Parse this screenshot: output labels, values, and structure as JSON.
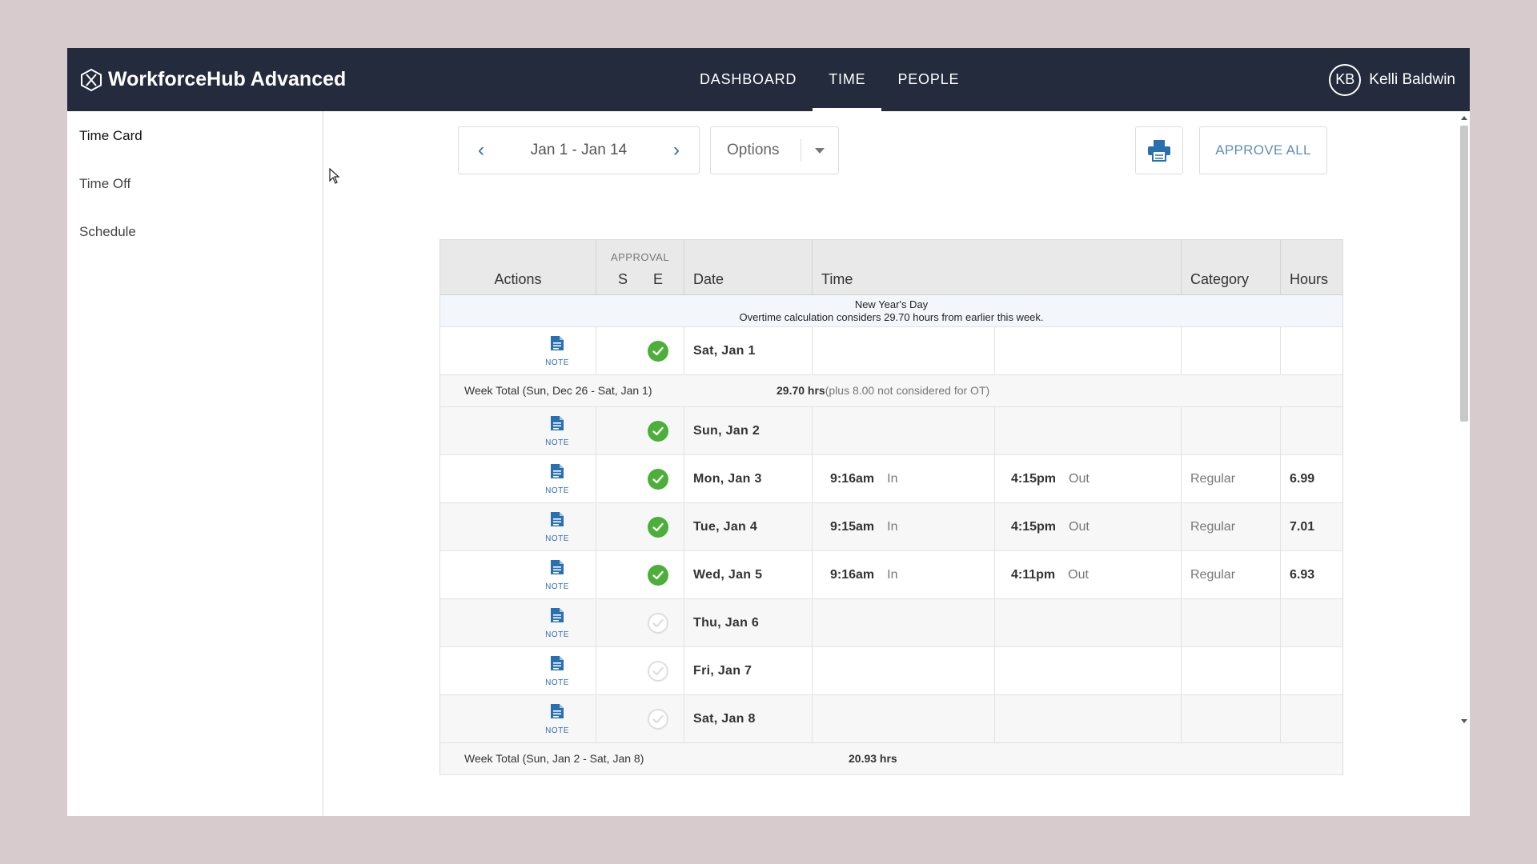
{
  "app": {
    "name": "WorkforceHub Advanced",
    "logo_icon": "hexagon-logo-icon"
  },
  "nav": {
    "items": [
      {
        "label": "DASHBOARD"
      },
      {
        "label": "TIME"
      },
      {
        "label": "PEOPLE"
      }
    ],
    "active": "TIME"
  },
  "user": {
    "initials": "KB",
    "name": "Kelli Baldwin"
  },
  "sidebar": {
    "items": [
      {
        "label": "Time Card"
      },
      {
        "label": "Time Off"
      },
      {
        "label": "Schedule"
      }
    ],
    "active": "Time Card"
  },
  "toolbar": {
    "prev_icon": "chevron-left-icon",
    "next_icon": "chevron-right-icon",
    "date_range": "Jan 1 - Jan 14",
    "options_label": "Options",
    "print_icon": "printer-icon",
    "approve_all_label": "APPROVE ALL"
  },
  "table": {
    "headers": {
      "actions": "Actions",
      "approval": "APPROVAL",
      "s": "S",
      "e": "E",
      "date": "Date",
      "time": "Time",
      "category": "Category",
      "hours": "Hours"
    },
    "holiday_note": {
      "title": "New Year's Day",
      "detail": "Overtime calculation considers 29.70 hours from earlier this week."
    },
    "note_label": "NOTE",
    "rows": [
      {
        "date": "Sat, Jan 1",
        "approved": true,
        "in_time": "",
        "in_dir": "",
        "out_time": "",
        "out_dir": "",
        "category": "",
        "hours": ""
      },
      {
        "date": "Sun, Jan 2",
        "approved": true,
        "in_time": "",
        "in_dir": "",
        "out_time": "",
        "out_dir": "",
        "category": "",
        "hours": ""
      },
      {
        "date": "Mon, Jan 3",
        "approved": true,
        "in_time": "9:16am",
        "in_dir": "In",
        "out_time": "4:15pm",
        "out_dir": "Out",
        "category": "Regular",
        "hours": "6.99"
      },
      {
        "date": "Tue, Jan 4",
        "approved": true,
        "in_time": "9:15am",
        "in_dir": "In",
        "out_time": "4:15pm",
        "out_dir": "Out",
        "category": "Regular",
        "hours": "7.01"
      },
      {
        "date": "Wed, Jan 5",
        "approved": true,
        "in_time": "9:16am",
        "in_dir": "In",
        "out_time": "4:11pm",
        "out_dir": "Out",
        "category": "Regular",
        "hours": "6.93"
      },
      {
        "date": "Thu, Jan 6",
        "approved": false,
        "in_time": "",
        "in_dir": "",
        "out_time": "",
        "out_dir": "",
        "category": "",
        "hours": ""
      },
      {
        "date": "Fri, Jan 7",
        "approved": false,
        "in_time": "",
        "in_dir": "",
        "out_time": "",
        "out_dir": "",
        "category": "",
        "hours": ""
      },
      {
        "date": "Sat, Jan 8",
        "approved": false,
        "in_time": "",
        "in_dir": "",
        "out_time": "",
        "out_dir": "",
        "category": "",
        "hours": ""
      }
    ],
    "week_totals": [
      {
        "label": "Week Total (Sun, Dec 26 - Sat, Jan 1)",
        "value": "29.70 hrs",
        "note": "(plus 8.00 not considered for OT)"
      },
      {
        "label": "Week Total (Sun, Jan 2 - Sat, Jan 8)",
        "value": "20.93 hrs",
        "note": ""
      }
    ]
  },
  "colors": {
    "header_bg": "#242b3d",
    "accent_blue": "#2a6fae",
    "approved_green": "#4caf3a"
  }
}
